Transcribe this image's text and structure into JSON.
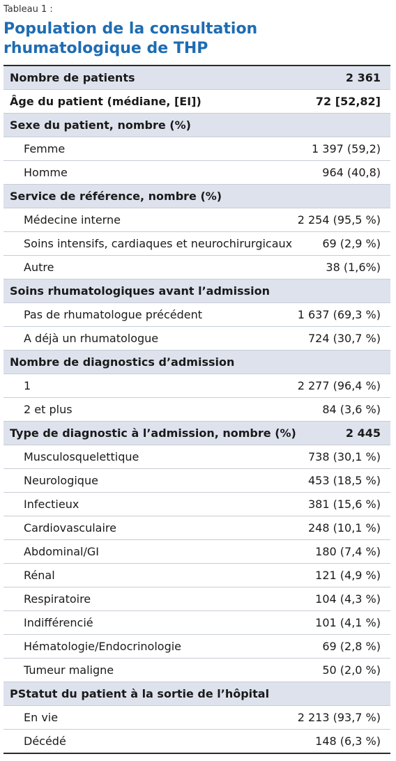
{
  "header": {
    "caption": "Tableau 1 :",
    "title": "Population de la consultation rhumatologique de THP"
  },
  "table": {
    "summary": [
      {
        "label": "Nombre de patients",
        "value": "2 361"
      },
      {
        "label": "Âge du patient (médiane, [EI])",
        "value": "72 [52,82]"
      }
    ],
    "sections": [
      {
        "heading": "Sexe du patient, nombre (%)",
        "items": [
          {
            "label": "Femme",
            "value": "1 397 (59,2)"
          },
          {
            "label": "Homme",
            "value": "964 (40,8)"
          }
        ]
      },
      {
        "heading": "Service de référence, nombre (%)",
        "items": [
          {
            "label": "Médecine interne",
            "value": "2 254 (95,5 %)"
          },
          {
            "label": "Soins intensifs, cardiaques et neurochirurgicaux",
            "value": "69 (2,9 %)"
          },
          {
            "label": "Autre",
            "value": "38 (1,6%)"
          }
        ]
      },
      {
        "heading": "Soins rhumatologiques avant l’admission",
        "items": [
          {
            "label": "Pas de rhumatologue précédent",
            "value": "1 637 (69,3 %)"
          },
          {
            "label": "A déjà un rhumatologue",
            "value": "724 (30,7 %)"
          }
        ]
      },
      {
        "heading": "Nombre de diagnostics d’admission",
        "items": [
          {
            "label": "1",
            "value": "2 277 (96,4 %)"
          },
          {
            "label": "2 et plus",
            "value": "84 (3,6 %)"
          }
        ]
      },
      {
        "heading": "Type de diagnostic à l’admission, nombre (%)",
        "value": "2 445",
        "items": [
          {
            "label": "Musculosquelettique",
            "value": "738 (30,1 %)"
          },
          {
            "label": "Neurologique",
            "value": "453 (18,5 %)"
          },
          {
            "label": "Infectieux",
            "value": "381 (15,6 %)"
          },
          {
            "label": "Cardiovasculaire",
            "value": "248 (10,1 %)"
          },
          {
            "label": "Abdominal/GI",
            "value": "180 (7,4 %)"
          },
          {
            "label": "Rénal",
            "value": "121 (4,9 %)"
          },
          {
            "label": "Respiratoire",
            "value": "104 (4,3 %)"
          },
          {
            "label": "Indifférencié",
            "value": "101 (4,1 %)"
          },
          {
            "label": "Hématologie/Endocrinologie",
            "value": "69 (2,8 %)"
          },
          {
            "label": "Tumeur maligne",
            "value": "50 (2,0 %)"
          }
        ]
      },
      {
        "heading": "PStatut du patient à la sortie de l’hôpital",
        "items": [
          {
            "label": "En vie",
            "value": "2 213 (93,7 %)"
          },
          {
            "label": "Décédé",
            "value": "148 (6,3 %)"
          }
        ]
      }
    ]
  }
}
